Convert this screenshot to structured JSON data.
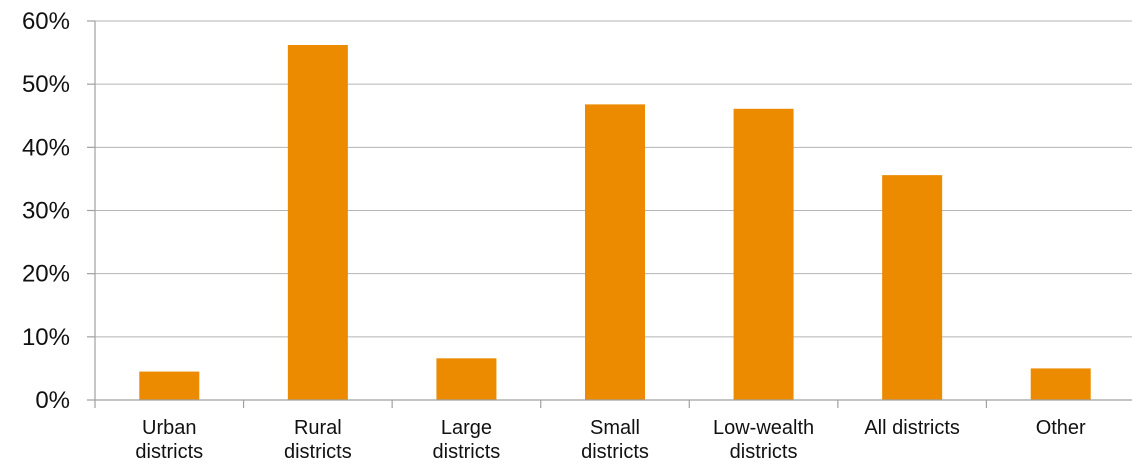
{
  "chart_data": {
    "type": "bar",
    "title": "",
    "xlabel": "",
    "ylabel": "",
    "categories": [
      [
        "Urban",
        "districts"
      ],
      [
        "Rural",
        "districts"
      ],
      [
        "Large",
        "districts"
      ],
      [
        "Small",
        "districts"
      ],
      [
        "Low-wealth",
        "districts"
      ],
      [
        "All districts"
      ],
      [
        "Other"
      ]
    ],
    "values": [
      4.5,
      56.2,
      6.6,
      46.8,
      46.1,
      35.6,
      5.0
    ],
    "ylim": [
      0,
      60
    ],
    "yticks": [
      0,
      10,
      20,
      30,
      40,
      50,
      60
    ],
    "ytick_labels": [
      "0%",
      "10%",
      "20%",
      "30%",
      "40%",
      "50%",
      "60%"
    ],
    "grid": true,
    "legend": "none",
    "bar_color": "#ED8B00"
  }
}
